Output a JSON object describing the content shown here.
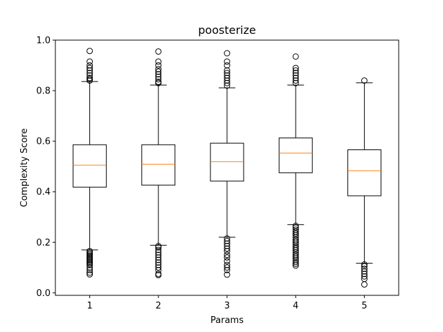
{
  "chart_data": {
    "type": "boxplot",
    "title": "poosterize",
    "xlabel": "Params",
    "ylabel": "Complexity Score",
    "ylim": [
      -0.01,
      1.0
    ],
    "yticks": [
      "0.0",
      "0.2",
      "0.4",
      "0.6",
      "0.8",
      "1.0"
    ],
    "ytick_values": [
      0.0,
      0.2,
      0.4,
      0.6,
      0.8,
      1.0
    ],
    "categories": [
      "1",
      "2",
      "3",
      "4",
      "5"
    ],
    "grid": false,
    "colors": {
      "box": "#000000",
      "median": "#ff7f0e",
      "outlier": "#000000"
    },
    "boxes": [
      {
        "label": "1",
        "whisker_low": 0.17,
        "q1": 0.418,
        "median": 0.505,
        "q3": 0.586,
        "whisker_high": 0.836,
        "outliers_high": [
          0.84,
          0.845,
          0.85,
          0.86,
          0.87,
          0.88,
          0.89,
          0.9,
          0.915,
          0.957
        ],
        "outliers_low": [
          0.165,
          0.16,
          0.155,
          0.15,
          0.145,
          0.14,
          0.135,
          0.13,
          0.125,
          0.12,
          0.115,
          0.11,
          0.1,
          0.09,
          0.08,
          0.073
        ]
      },
      {
        "label": "2",
        "whisker_low": 0.188,
        "q1": 0.426,
        "median": 0.509,
        "q3": 0.586,
        "whisker_high": 0.822,
        "outliers_high": [
          0.83,
          0.835,
          0.845,
          0.855,
          0.865,
          0.875,
          0.885,
          0.9,
          0.915,
          0.955
        ],
        "outliers_low": [
          0.185,
          0.18,
          0.17,
          0.16,
          0.15,
          0.14,
          0.13,
          0.12,
          0.11,
          0.1,
          0.09,
          0.075,
          0.07
        ]
      },
      {
        "label": "3",
        "whisker_low": 0.22,
        "q1": 0.442,
        "median": 0.519,
        "q3": 0.592,
        "whisker_high": 0.811,
        "outliers_high": [
          0.82,
          0.83,
          0.84,
          0.85,
          0.86,
          0.87,
          0.88,
          0.9,
          0.915,
          0.948
        ],
        "outliers_low": [
          0.215,
          0.205,
          0.195,
          0.185,
          0.175,
          0.165,
          0.15,
          0.14,
          0.125,
          0.11,
          0.1,
          0.09,
          0.072
        ]
      },
      {
        "label": "4",
        "whisker_low": 0.27,
        "q1": 0.475,
        "median": 0.553,
        "q3": 0.613,
        "whisker_high": 0.822,
        "outliers_high": [
          0.83,
          0.84,
          0.85,
          0.86,
          0.87,
          0.88,
          0.89,
          0.935
        ],
        "outliers_low": [
          0.265,
          0.258,
          0.25,
          0.242,
          0.235,
          0.228,
          0.22,
          0.212,
          0.205,
          0.198,
          0.19,
          0.182,
          0.175,
          0.168,
          0.16,
          0.152,
          0.145,
          0.138,
          0.13,
          0.122,
          0.115,
          0.108
        ]
      },
      {
        "label": "5",
        "whisker_low": 0.117,
        "q1": 0.384,
        "median": 0.483,
        "q3": 0.566,
        "whisker_high": 0.831,
        "outliers_high": [
          0.84
        ],
        "outliers_low": [
          0.112,
          0.105,
          0.095,
          0.085,
          0.075,
          0.065,
          0.055,
          0.033
        ]
      }
    ]
  }
}
